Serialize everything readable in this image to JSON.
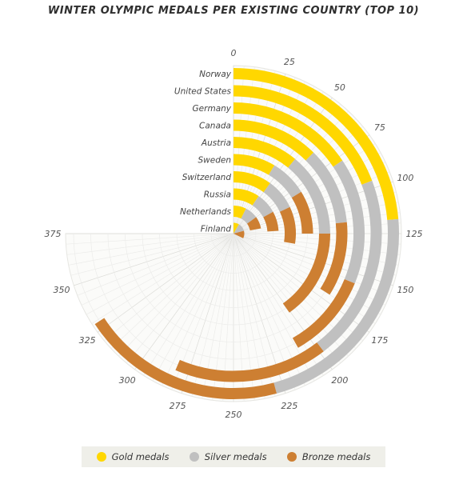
{
  "chart_data": {
    "type": "radial-bar",
    "title": "WINTER OLYMPIC MEDALS PER EXISTING COUNTRY (TOP 10)",
    "categories": [
      "Norway",
      "United States",
      "Germany",
      "Canada",
      "Austria",
      "Sweden",
      "Switzerland",
      "Russia",
      "Netherlands",
      "Finland"
    ],
    "series": [
      {
        "name": "Gold medals",
        "color": "#ffd700",
        "values": [
          118,
          96,
          78,
          62,
          55,
          43,
          50,
          47,
          37,
          42
        ]
      },
      {
        "name": "Silver medals",
        "color": "#c0c0c0",
        "values": [
          111,
          102,
          78,
          55,
          70,
          38,
          40,
          38,
          38,
          62
        ]
      },
      {
        "name": "Bronze medals",
        "color": "#cd7f32",
        "values": [
          100,
          84,
          53,
          53,
          76,
          44,
          48,
          35,
          35,
          57
        ]
      }
    ],
    "axis": {
      "ticks": [
        "0",
        "25",
        "50",
        "75",
        "100",
        "125",
        "150",
        "175",
        "200",
        "225",
        "250",
        "275",
        "300",
        "325",
        "350",
        "375"
      ],
      "range": [
        0,
        375
      ],
      "angle_range_degrees": 270
    },
    "stacked": true,
    "grid": true,
    "legend_position": "bottom"
  }
}
